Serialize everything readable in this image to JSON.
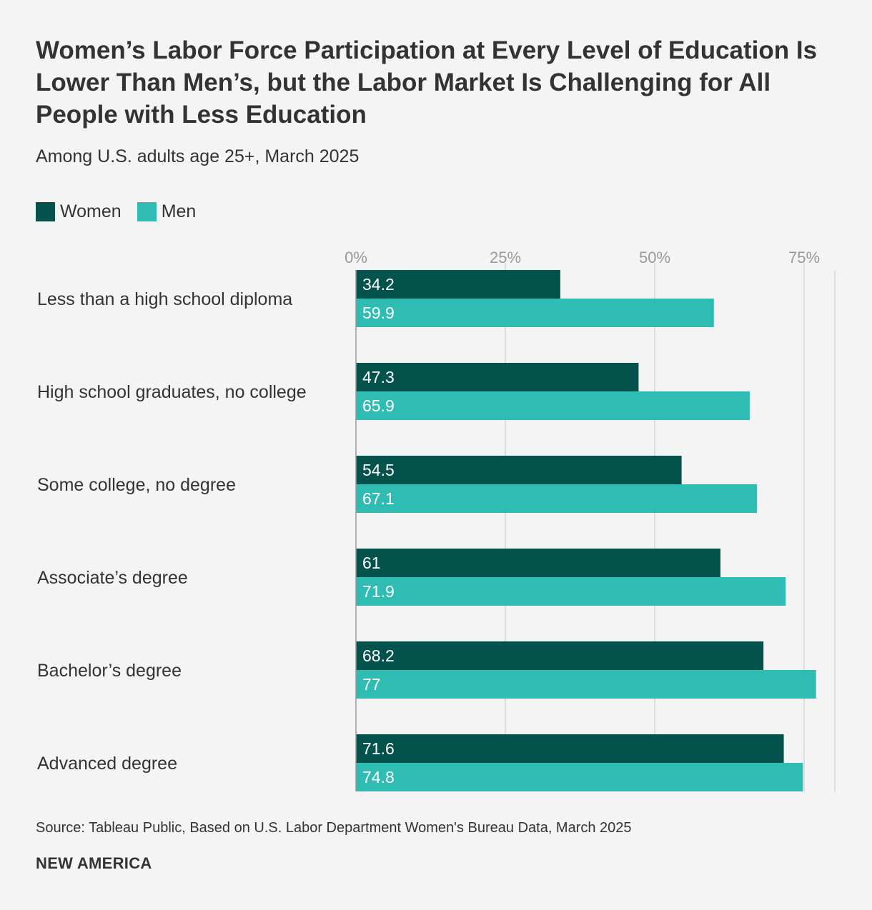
{
  "header": {
    "title": "Women’s Labor Force Participation at Every Level of Education Is Lower Than Men’s, but the Labor Market Is Challenging for All People with Less Education",
    "subtitle": "Among U.S. adults age 25+, March 2025"
  },
  "legend": {
    "women_label": "Women",
    "men_label": "Men"
  },
  "colors": {
    "women": "#03524c",
    "men": "#2fbcb3",
    "grid": "#d6d6d6",
    "axis": "#9a9a9a",
    "tick_text": "#999999",
    "bar_label": "#ffffff",
    "category_text": "#333333"
  },
  "chart_data": {
    "type": "bar",
    "orientation": "horizontal",
    "categories": [
      "Less than a high school diploma",
      "High school graduates, no college",
      "Some college, no degree",
      "Associate’s degree",
      "Bachelor’s degree",
      "Advanced degree"
    ],
    "series": [
      {
        "name": "Women",
        "values": [
          34.2,
          47.3,
          54.5,
          61,
          68.2,
          71.6
        ],
        "labels": [
          "34.2",
          "47.3",
          "54.5",
          "61",
          "68.2",
          "71.6"
        ]
      },
      {
        "name": "Men",
        "values": [
          59.9,
          65.9,
          67.1,
          71.9,
          77,
          74.8
        ],
        "labels": [
          "59.9",
          "65.9",
          "67.1",
          "71.9",
          "77",
          "74.8"
        ]
      }
    ],
    "x_ticks": [
      0,
      25,
      50,
      75
    ],
    "x_tick_labels": [
      "0%",
      "25%",
      "50%",
      "75%"
    ],
    "xlim": [
      0,
      80
    ],
    "legend_position": "top-left",
    "grid": true
  },
  "footer": {
    "source": "Source: Tableau Public, Based on U.S. Labor Department Women's Bureau Data, March 2025",
    "brand": "NEW AMERICA"
  }
}
